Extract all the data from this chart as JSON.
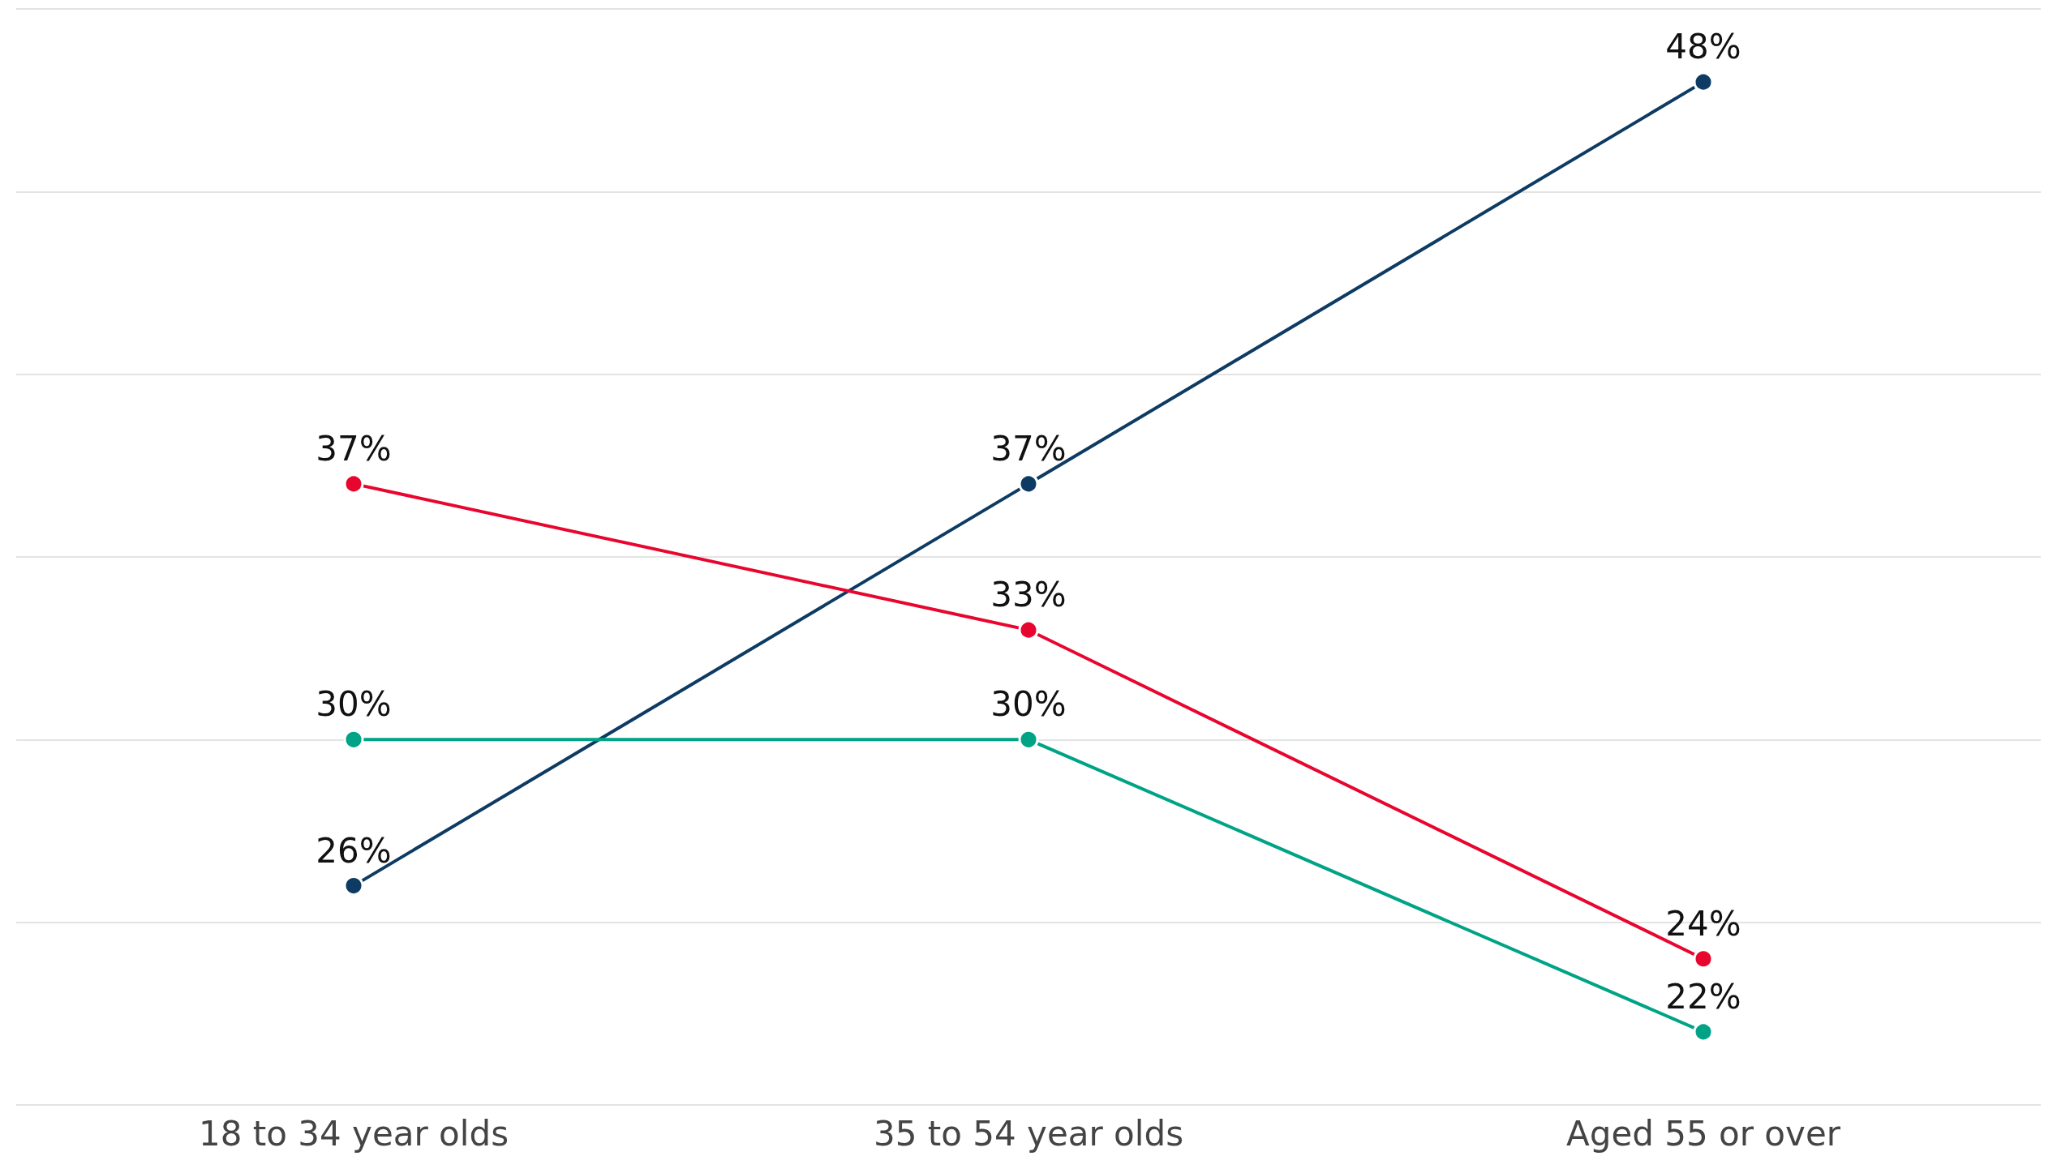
{
  "chart_data": {
    "type": "line",
    "categories": [
      "18 to 34 year olds",
      "35 to 54 year olds",
      "Aged 55 or over"
    ],
    "series": [
      {
        "color": "#0d3b63",
        "values": [
          26,
          37,
          48
        ],
        "value_labels": [
          "26%",
          "37%",
          "48%"
        ]
      },
      {
        "color": "#e8062f",
        "values": [
          37,
          33,
          24
        ],
        "value_labels": [
          "37%",
          "33%",
          "24%"
        ]
      },
      {
        "color": "#00a386",
        "values": [
          30,
          30,
          22
        ],
        "value_labels": [
          "30%",
          "30%",
          "22%"
        ]
      }
    ],
    "ylim": [
      20,
      50
    ],
    "yticks": [
      {
        "value": 20,
        "label": null
      },
      {
        "value": 25,
        "label": null
      },
      {
        "value": 30,
        "label": null
      },
      {
        "value": 35,
        "label": null
      },
      {
        "value": 40,
        "label": null
      },
      {
        "value": 45,
        "label": null
      },
      {
        "value": 50,
        "label": null
      }
    ],
    "grid": "y",
    "tick_labels": "x",
    "marker": "circle",
    "line_style": "solid"
  }
}
